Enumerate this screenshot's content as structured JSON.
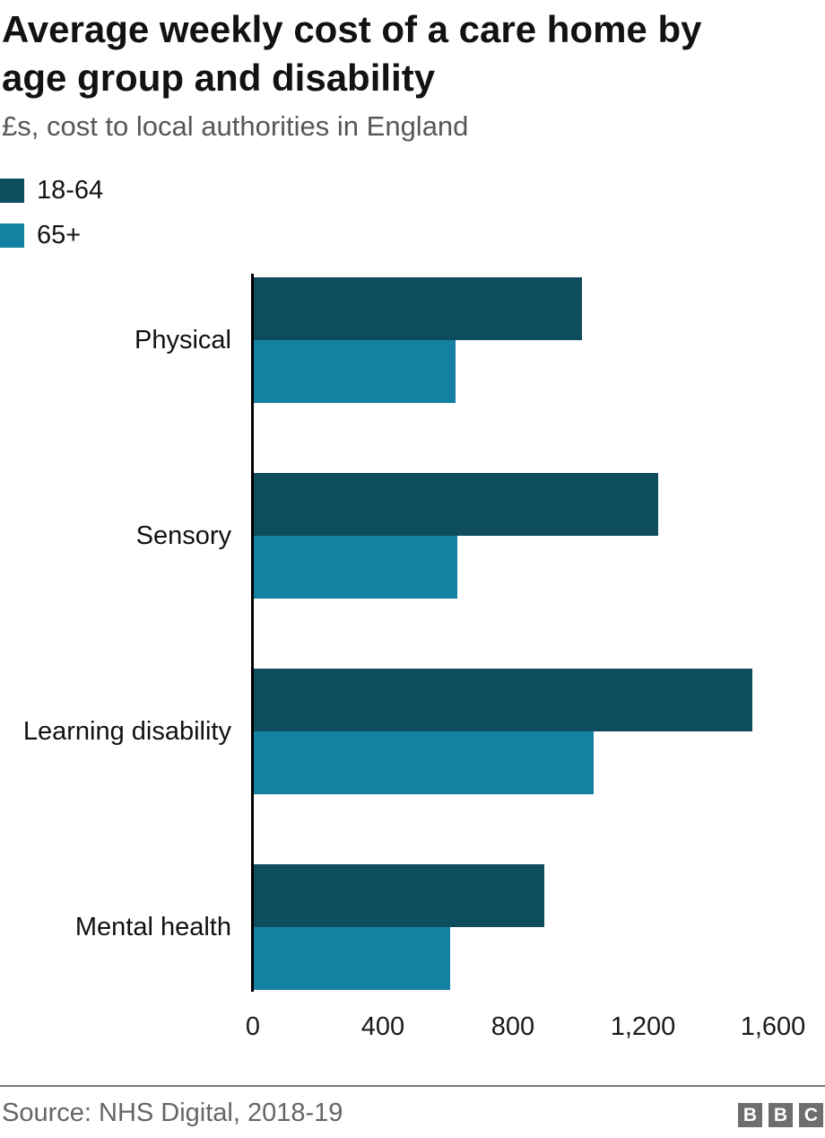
{
  "header": {
    "title_line1": "Average weekly cost of a care home by",
    "title_line2": "age group and disability",
    "subtitle": "£s, cost to local authorities in England"
  },
  "legend": [
    {
      "label": "18-64",
      "color": "#0d4d5e"
    },
    {
      "label": "65+",
      "color": "#1581a2"
    }
  ],
  "chart_data": {
    "type": "bar",
    "orientation": "horizontal",
    "title": "Average weekly cost of a care home by age group and disability",
    "subtitle": "£s, cost to local authorities in England",
    "categories": [
      "Physical",
      "Sensory",
      "Learning disability",
      "Mental health"
    ],
    "series": [
      {
        "name": "18-64",
        "color": "#0d4d5e",
        "values": [
          1010,
          1245,
          1535,
          895
        ]
      },
      {
        "name": "65+",
        "color": "#1581a2",
        "values": [
          620,
          625,
          1045,
          605
        ]
      }
    ],
    "xlim": [
      0,
      1600
    ],
    "xticks": [
      0,
      400,
      800,
      1200,
      1600
    ],
    "xtick_labels": [
      "0",
      "400",
      "800",
      "1,200",
      "1,600"
    ],
    "grid": false,
    "legend_position": "top-left",
    "accent_colors": {
      "dark_teal": "#0d4d5e",
      "light_teal": "#1581a2"
    }
  },
  "footer": {
    "source": "Source: NHS Digital, 2018-19",
    "logo_letters": [
      "B",
      "B",
      "C"
    ]
  }
}
